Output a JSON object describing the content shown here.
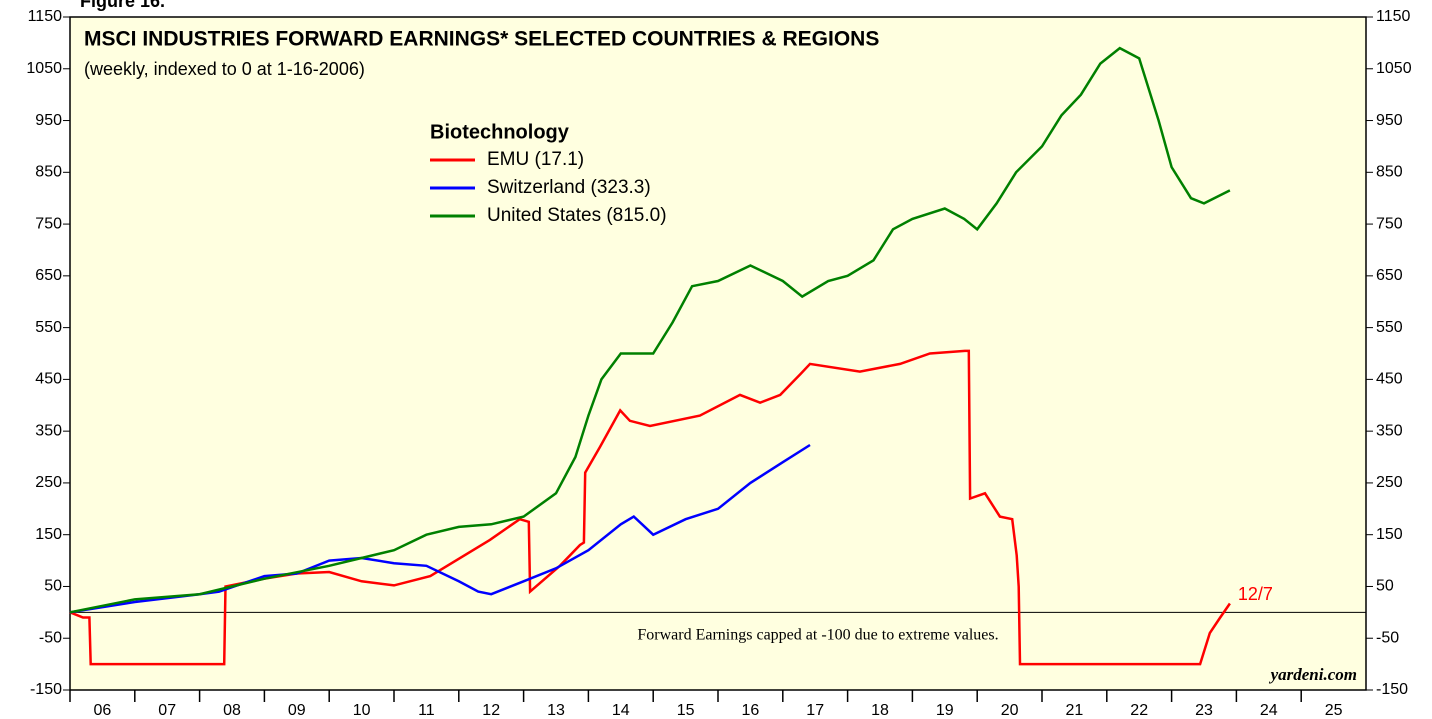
{
  "chart_data": {
    "type": "line",
    "figure_label": "Figure 16.",
    "title": "MSCI INDUSTRIES FORWARD EARNINGS* SELECTED COUNTRIES & REGIONS",
    "subtitle": "(weekly, indexed to 0 at 1-16-2006)",
    "legend_title": "Biotechnology",
    "note": "Forward Earnings capped at -100 due to extreme values.",
    "source": "yardeni.com",
    "end_label": "12/7",
    "reference_line": 0,
    "background": "#ffffe0",
    "xlim": [
      2006,
      2026
    ],
    "xticks": [
      {
        "value": 2006,
        "label": "06"
      },
      {
        "value": 2007,
        "label": "07"
      },
      {
        "value": 2008,
        "label": "08"
      },
      {
        "value": 2009,
        "label": "09"
      },
      {
        "value": 2010,
        "label": "10"
      },
      {
        "value": 2011,
        "label": "11"
      },
      {
        "value": 2012,
        "label": "12"
      },
      {
        "value": 2013,
        "label": "13"
      },
      {
        "value": 2014,
        "label": "14"
      },
      {
        "value": 2015,
        "label": "15"
      },
      {
        "value": 2016,
        "label": "16"
      },
      {
        "value": 2017,
        "label": "17"
      },
      {
        "value": 2018,
        "label": "18"
      },
      {
        "value": 2019,
        "label": "19"
      },
      {
        "value": 2020,
        "label": "20"
      },
      {
        "value": 2021,
        "label": "21"
      },
      {
        "value": 2022,
        "label": "22"
      },
      {
        "value": 2023,
        "label": "23"
      },
      {
        "value": 2024,
        "label": "24"
      },
      {
        "value": 2025,
        "label": "25"
      }
    ],
    "ylim": [
      -150,
      1150
    ],
    "yticks": [
      -150,
      -50,
      50,
      150,
      250,
      350,
      450,
      550,
      650,
      750,
      850,
      950,
      1050,
      1150
    ],
    "series": [
      {
        "name": "EMU (17.1)",
        "color": "#ff0000",
        "x": [
          2006.0,
          2006.2,
          2006.3,
          2006.32,
          2008.38,
          2008.4,
          2009.0,
          2009.5,
          2010.0,
          2010.5,
          2011.0,
          2011.56,
          2012.48,
          2012.94,
          2013.08,
          2013.1,
          2013.56,
          2013.87,
          2013.93,
          2013.95,
          2014.18,
          2014.49,
          2014.64,
          2014.95,
          2015.72,
          2016.34,
          2016.65,
          2016.96,
          2017.27,
          2017.42,
          2018.19,
          2018.81,
          2019.27,
          2019.81,
          2019.87,
          2019.89,
          2020.12,
          2020.35,
          2020.54,
          2020.61,
          2020.64,
          2020.66,
          2023.44,
          2023.59,
          2023.75,
          2023.9
        ],
        "values": [
          0,
          -10,
          -10,
          -100,
          -100,
          50,
          65,
          75,
          78,
          60,
          52,
          70,
          140,
          180,
          175,
          40,
          90,
          130,
          135,
          270,
          320,
          390,
          370,
          360,
          380,
          420,
          405,
          420,
          460,
          480,
          465,
          480,
          500,
          505,
          505,
          220,
          230,
          185,
          180,
          110,
          50,
          -100,
          -100,
          -40,
          -10,
          17.1
        ]
      },
      {
        "name": "Switzerland (323.3)",
        "color": "#0000ff",
        "x": [
          2006.0,
          2007.0,
          2008.0,
          2008.3,
          2009.0,
          2009.5,
          2010.0,
          2010.5,
          2011.0,
          2011.5,
          2012.0,
          2012.3,
          2012.5,
          2013.0,
          2013.5,
          2014.0,
          2014.5,
          2014.7,
          2015.0,
          2015.5,
          2016.0,
          2016.5,
          2017.0,
          2017.42
        ],
        "values": [
          0,
          20,
          35,
          40,
          70,
          75,
          100,
          105,
          95,
          90,
          60,
          40,
          35,
          60,
          85,
          120,
          170,
          185,
          150,
          180,
          200,
          250,
          290,
          323.3
        ]
      },
      {
        "name": "United States (815.0)",
        "color": "#008000",
        "x": [
          2006.0,
          2007.0,
          2008.0,
          2009.0,
          2010.0,
          2010.5,
          2011.0,
          2011.5,
          2012.0,
          2012.5,
          2013.0,
          2013.5,
          2013.8,
          2014.0,
          2014.2,
          2014.5,
          2015.0,
          2015.3,
          2015.6,
          2016.0,
          2016.5,
          2017.0,
          2017.3,
          2017.7,
          2018.0,
          2018.4,
          2018.7,
          2019.0,
          2019.5,
          2019.8,
          2020.0,
          2020.3,
          2020.6,
          2021.0,
          2021.3,
          2021.6,
          2021.9,
          2022.2,
          2022.5,
          2022.8,
          2023.0,
          2023.3,
          2023.5,
          2023.9
        ],
        "values": [
          0,
          25,
          35,
          65,
          90,
          105,
          120,
          150,
          165,
          170,
          185,
          230,
          300,
          380,
          450,
          500,
          500,
          560,
          630,
          640,
          670,
          640,
          610,
          640,
          650,
          680,
          740,
          760,
          780,
          760,
          740,
          790,
          850,
          900,
          960,
          1000,
          1060,
          1090,
          1070,
          950,
          860,
          800,
          790,
          815.0
        ]
      }
    ]
  }
}
